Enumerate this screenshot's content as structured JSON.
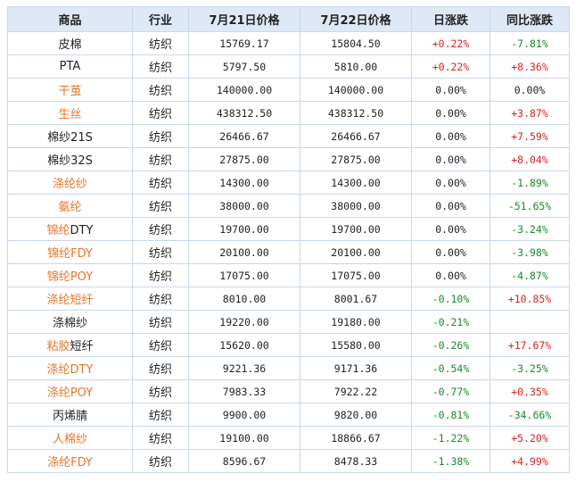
{
  "table": {
    "headers": [
      "商品",
      "行业",
      "7月21日价格",
      "7月22日价格",
      "日涨跌",
      "同比涨跌"
    ],
    "rows": [
      {
        "name_parts": [
          {
            "text": "皮棉",
            "style": "plain"
          }
        ],
        "industry": "纺织",
        "price_0721": "15769.17",
        "price_0722": "15804.50",
        "daily": "+0.22%",
        "daily_dir": "up",
        "yoy": "-7.81%",
        "yoy_dir": "down"
      },
      {
        "name_parts": [
          {
            "text": "PTA",
            "style": "plain"
          }
        ],
        "industry": "纺织",
        "price_0721": "5797.50",
        "price_0722": "5810.00",
        "daily": "+0.22%",
        "daily_dir": "up",
        "yoy": "+8.36%",
        "yoy_dir": "up"
      },
      {
        "name_parts": [
          {
            "text": "干茧",
            "style": "link"
          }
        ],
        "industry": "纺织",
        "price_0721": "140000.00",
        "price_0722": "140000.00",
        "daily": "0.00%",
        "daily_dir": "flat",
        "yoy": "0.00%",
        "yoy_dir": "flat"
      },
      {
        "name_parts": [
          {
            "text": "生丝",
            "style": "link"
          }
        ],
        "industry": "纺织",
        "price_0721": "438312.50",
        "price_0722": "438312.50",
        "daily": "0.00%",
        "daily_dir": "flat",
        "yoy": "+3.87%",
        "yoy_dir": "up"
      },
      {
        "name_parts": [
          {
            "text": "棉纱21S",
            "style": "plain"
          }
        ],
        "industry": "纺织",
        "price_0721": "26466.67",
        "price_0722": "26466.67",
        "daily": "0.00%",
        "daily_dir": "flat",
        "yoy": "+7.59%",
        "yoy_dir": "up"
      },
      {
        "name_parts": [
          {
            "text": "棉纱32S",
            "style": "plain"
          }
        ],
        "industry": "纺织",
        "price_0721": "27875.00",
        "price_0722": "27875.00",
        "daily": "0.00%",
        "daily_dir": "flat",
        "yoy": "+8.04%",
        "yoy_dir": "up"
      },
      {
        "name_parts": [
          {
            "text": "涤纶纱",
            "style": "link"
          }
        ],
        "industry": "纺织",
        "price_0721": "14300.00",
        "price_0722": "14300.00",
        "daily": "0.00%",
        "daily_dir": "flat",
        "yoy": "-1.89%",
        "yoy_dir": "down"
      },
      {
        "name_parts": [
          {
            "text": "氨纶",
            "style": "link"
          }
        ],
        "industry": "纺织",
        "price_0721": "38000.00",
        "price_0722": "38000.00",
        "daily": "0.00%",
        "daily_dir": "flat",
        "yoy": "-51.65%",
        "yoy_dir": "down"
      },
      {
        "name_parts": [
          {
            "text": "锦纶",
            "style": "link"
          },
          {
            "text": "DTY",
            "style": "plain"
          }
        ],
        "industry": "纺织",
        "price_0721": "19700.00",
        "price_0722": "19700.00",
        "daily": "0.00%",
        "daily_dir": "flat",
        "yoy": "-3.24%",
        "yoy_dir": "down"
      },
      {
        "name_parts": [
          {
            "text": "锦纶FDY",
            "style": "link"
          }
        ],
        "industry": "纺织",
        "price_0721": "20100.00",
        "price_0722": "20100.00",
        "daily": "0.00%",
        "daily_dir": "flat",
        "yoy": "-3.98%",
        "yoy_dir": "down"
      },
      {
        "name_parts": [
          {
            "text": "锦纶POY",
            "style": "link"
          }
        ],
        "industry": "纺织",
        "price_0721": "17075.00",
        "price_0722": "17075.00",
        "daily": "0.00%",
        "daily_dir": "flat",
        "yoy": "-4.87%",
        "yoy_dir": "down"
      },
      {
        "name_parts": [
          {
            "text": "涤纶短纤",
            "style": "link"
          }
        ],
        "industry": "纺织",
        "price_0721": "8010.00",
        "price_0722": "8001.67",
        "daily": "-0.10%",
        "daily_dir": "down",
        "yoy": "+10.85%",
        "yoy_dir": "up"
      },
      {
        "name_parts": [
          {
            "text": "涤棉纱",
            "style": "plain"
          }
        ],
        "industry": "纺织",
        "price_0721": "19220.00",
        "price_0722": "19180.00",
        "daily": "-0.21%",
        "daily_dir": "down",
        "yoy": "",
        "yoy_dir": "flat"
      },
      {
        "name_parts": [
          {
            "text": "粘胶",
            "style": "link"
          },
          {
            "text": "短纤",
            "style": "plain"
          }
        ],
        "industry": "纺织",
        "price_0721": "15620.00",
        "price_0722": "15580.00",
        "daily": "-0.26%",
        "daily_dir": "down",
        "yoy": "+17.67%",
        "yoy_dir": "up"
      },
      {
        "name_parts": [
          {
            "text": "涤纶DTY",
            "style": "link"
          }
        ],
        "industry": "纺织",
        "price_0721": "9221.36",
        "price_0722": "9171.36",
        "daily": "-0.54%",
        "daily_dir": "down",
        "yoy": "-3.25%",
        "yoy_dir": "down"
      },
      {
        "name_parts": [
          {
            "text": "涤纶POY",
            "style": "link"
          }
        ],
        "industry": "纺织",
        "price_0721": "7983.33",
        "price_0722": "7922.22",
        "daily": "-0.77%",
        "daily_dir": "down",
        "yoy": "+0.35%",
        "yoy_dir": "up"
      },
      {
        "name_parts": [
          {
            "text": "丙烯腈",
            "style": "plain"
          }
        ],
        "industry": "纺织",
        "price_0721": "9900.00",
        "price_0722": "9820.00",
        "daily": "-0.81%",
        "daily_dir": "down",
        "yoy": "-34.66%",
        "yoy_dir": "down"
      },
      {
        "name_parts": [
          {
            "text": "人棉纱",
            "style": "link"
          }
        ],
        "industry": "纺织",
        "price_0721": "19100.00",
        "price_0722": "18866.67",
        "daily": "-1.22%",
        "daily_dir": "down",
        "yoy": "+5.20%",
        "yoy_dir": "up"
      },
      {
        "name_parts": [
          {
            "text": "涤纶FDY",
            "style": "link"
          }
        ],
        "industry": "纺织",
        "price_0721": "8596.67",
        "price_0722": "8478.33",
        "daily": "-1.38%",
        "daily_dir": "down",
        "yoy": "+4.99%",
        "yoy_dir": "up"
      }
    ]
  },
  "colors": {
    "header_bg": "#dfe9f6",
    "border": "#c8d7ea",
    "link": "#e8742a",
    "up": "#d62222",
    "down": "#1a8a2a"
  }
}
